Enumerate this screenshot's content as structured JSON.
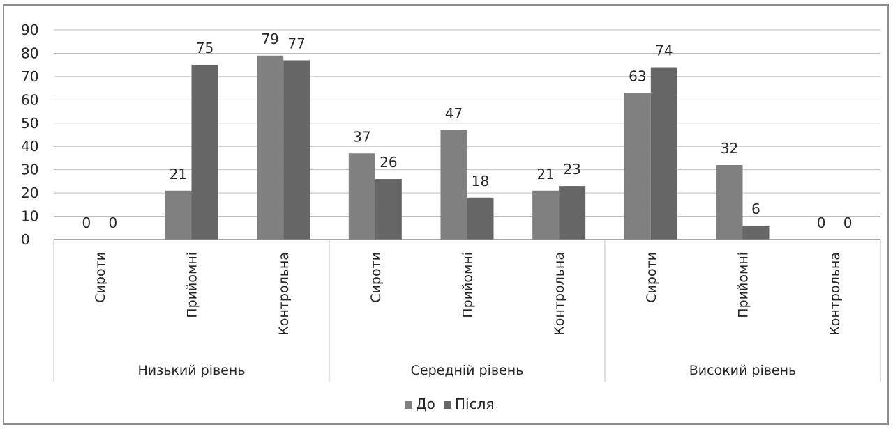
{
  "chart_data": {
    "type": "bar",
    "title": "",
    "xlabel": "",
    "ylabel": "",
    "ylim": [
      0,
      90
    ],
    "yticks": [
      0,
      10,
      20,
      30,
      40,
      50,
      60,
      70,
      80,
      90
    ],
    "grid": true,
    "legend_position": "bottom",
    "groups": [
      "Низький рівень",
      "Середній рівень",
      "Високий рівень"
    ],
    "categories": [
      "Сироти",
      "Прийомні",
      "Контрольна",
      "Сироти",
      "Прийомні",
      "Контрольна",
      "Сироти",
      "Прийомні",
      "Контрольна"
    ],
    "series": [
      {
        "name": "До",
        "color": "#808080",
        "values": [
          0,
          21,
          79,
          37,
          47,
          21,
          63,
          32,
          0
        ]
      },
      {
        "name": "Після",
        "color": "#666666",
        "values": [
          0,
          75,
          77,
          26,
          18,
          23,
          74,
          6,
          0
        ]
      }
    ]
  }
}
